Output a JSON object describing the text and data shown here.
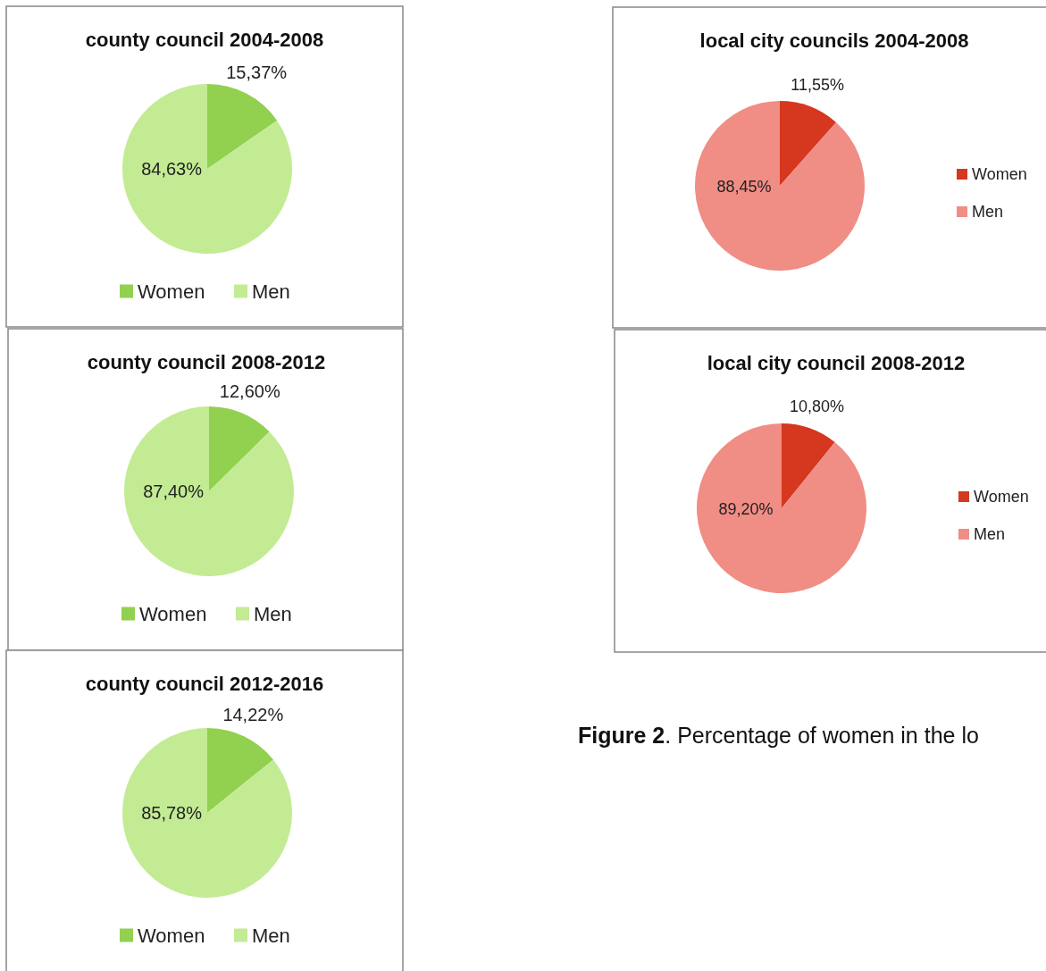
{
  "chart_data": [
    {
      "type": "pie",
      "title": "county council 2004-2008",
      "categories": [
        "Women",
        "Men"
      ],
      "values": [
        15.37,
        84.63
      ],
      "colors": [
        "#92d050",
        "#c3eb94"
      ],
      "value_labels": [
        "15,37%",
        "84,63%"
      ],
      "legend": "bottom"
    },
    {
      "type": "pie",
      "title": "local city councils 2004-2008",
      "categories": [
        "Women",
        "Men"
      ],
      "values": [
        11.55,
        88.45
      ],
      "colors": [
        "#d6371f",
        "#f08d85"
      ],
      "value_labels": [
        "11,55%",
        "88,45%"
      ],
      "legend": "right"
    },
    {
      "type": "pie",
      "title": "county council 2008-2012",
      "categories": [
        "Women",
        "Men"
      ],
      "values": [
        12.6,
        87.4
      ],
      "colors": [
        "#92d050",
        "#c3eb94"
      ],
      "value_labels": [
        "12,60%",
        "87,40%"
      ],
      "legend": "bottom"
    },
    {
      "type": "pie",
      "title": "local city council 2008-2012",
      "categories": [
        "Women",
        "Men"
      ],
      "values": [
        10.8,
        89.2
      ],
      "colors": [
        "#d6371f",
        "#f08d85"
      ],
      "value_labels": [
        "10,80%",
        "89,20%"
      ],
      "legend": "right",
      "annotations": [
        "Figure 2. Percentage of women in the lo"
      ]
    },
    {
      "type": "pie",
      "title": "county council 2012-2016",
      "categories": [
        "Women",
        "Men"
      ],
      "values": [
        14.22,
        85.78
      ],
      "colors": [
        "#92d050",
        "#c3eb94"
      ],
      "value_labels": [
        "14,22%",
        "85,78%"
      ],
      "legend": "bottom"
    }
  ]
}
